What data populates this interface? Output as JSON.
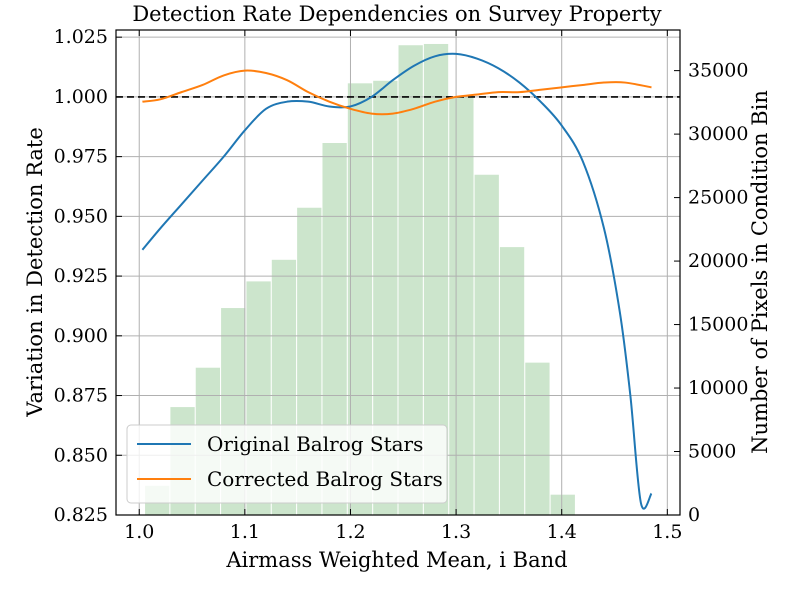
{
  "chart_data": {
    "type": "bar+line",
    "title": "Detection Rate Dependencies on Survey Property",
    "xlabel": "Airmass Weighted Mean, i Band",
    "ylabel": "Variation in Detection Rate",
    "y2label": "Number of Pixels in Condition Bin",
    "xlim": [
      0.978,
      1.512
    ],
    "ylim": [
      0.825,
      1.028
    ],
    "y2lim": [
      0,
      38200
    ],
    "xticks": [
      "1.0",
      "1.1",
      "1.2",
      "1.3",
      "1.4",
      "1.5"
    ],
    "xtick_values": [
      1.0,
      1.1,
      1.2,
      1.3,
      1.4,
      1.5
    ],
    "yticks": [
      "0.825",
      "0.850",
      "0.875",
      "0.900",
      "0.925",
      "0.950",
      "0.975",
      "1.000",
      "1.025"
    ],
    "ytick_values": [
      0.825,
      0.85,
      0.875,
      0.9,
      0.925,
      0.95,
      0.975,
      1.0,
      1.025
    ],
    "y2ticks": [
      "0",
      "5000",
      "10000",
      "15000",
      "20000",
      "25000",
      "30000",
      "35000"
    ],
    "y2tick_values": [
      0,
      5000,
      10000,
      15000,
      20000,
      25000,
      30000,
      35000
    ],
    "grid": true,
    "reference_line": 1.0,
    "legend_position": "lower-left",
    "histogram": {
      "color": "#cce5cc",
      "bin_centers": [
        1.017,
        1.041,
        1.065,
        1.089,
        1.113,
        1.137,
        1.161,
        1.185,
        1.209,
        1.233,
        1.257,
        1.281,
        1.305,
        1.329,
        1.353,
        1.377,
        1.401
      ],
      "bin_width": 0.023,
      "counts": [
        2300,
        8500,
        11600,
        16300,
        18400,
        20100,
        24200,
        29300,
        34000,
        34200,
        37000,
        37100,
        32900,
        26800,
        21100,
        12000,
        1600
      ]
    },
    "series": [
      {
        "name": "Original Balrog Stars",
        "color": "#1f77b4",
        "x": [
          1.003,
          1.02,
          1.04,
          1.06,
          1.08,
          1.1,
          1.12,
          1.14,
          1.16,
          1.18,
          1.2,
          1.22,
          1.24,
          1.26,
          1.28,
          1.3,
          1.32,
          1.34,
          1.36,
          1.38,
          1.4,
          1.42,
          1.44,
          1.455,
          1.465,
          1.475,
          1.485
        ],
        "y": [
          0.936,
          0.945,
          0.955,
          0.965,
          0.975,
          0.986,
          0.995,
          0.998,
          0.998,
          0.996,
          0.996,
          1.0,
          1.007,
          1.013,
          1.017,
          1.018,
          1.016,
          1.012,
          1.006,
          0.998,
          0.988,
          0.973,
          0.945,
          0.91,
          0.875,
          0.83,
          0.834
        ]
      },
      {
        "name": "Corrected Balrog Stars",
        "color": "#ff7f0e",
        "x": [
          1.003,
          1.02,
          1.04,
          1.06,
          1.08,
          1.1,
          1.12,
          1.14,
          1.16,
          1.18,
          1.2,
          1.22,
          1.24,
          1.26,
          1.28,
          1.3,
          1.32,
          1.34,
          1.36,
          1.38,
          1.4,
          1.42,
          1.44,
          1.46,
          1.485
        ],
        "y": [
          0.998,
          0.999,
          1.002,
          1.005,
          1.009,
          1.011,
          1.01,
          1.007,
          1.002,
          0.998,
          0.995,
          0.993,
          0.993,
          0.995,
          0.998,
          1.0,
          1.001,
          1.002,
          1.002,
          1.003,
          1.004,
          1.005,
          1.006,
          1.006,
          1.004
        ]
      }
    ]
  }
}
